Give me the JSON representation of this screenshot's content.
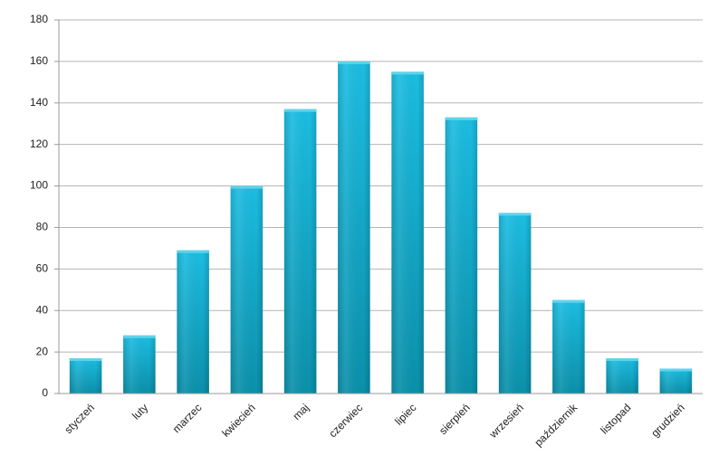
{
  "chart_data": {
    "type": "bar",
    "categories": [
      "styczeń",
      "luty",
      "marzec",
      "kwiecień",
      "maj",
      "czerwiec",
      "lipiec",
      "sierpień",
      "wrzesień",
      "październik",
      "listopad",
      "grudzień"
    ],
    "values": [
      17,
      28,
      69,
      100,
      137,
      160,
      155,
      133,
      87,
      45,
      17,
      12
    ],
    "color": "#14b2d6",
    "ylim": [
      0,
      180
    ],
    "yticks": [
      0,
      20,
      40,
      60,
      80,
      100,
      120,
      140,
      160,
      180
    ],
    "grid": true
  }
}
